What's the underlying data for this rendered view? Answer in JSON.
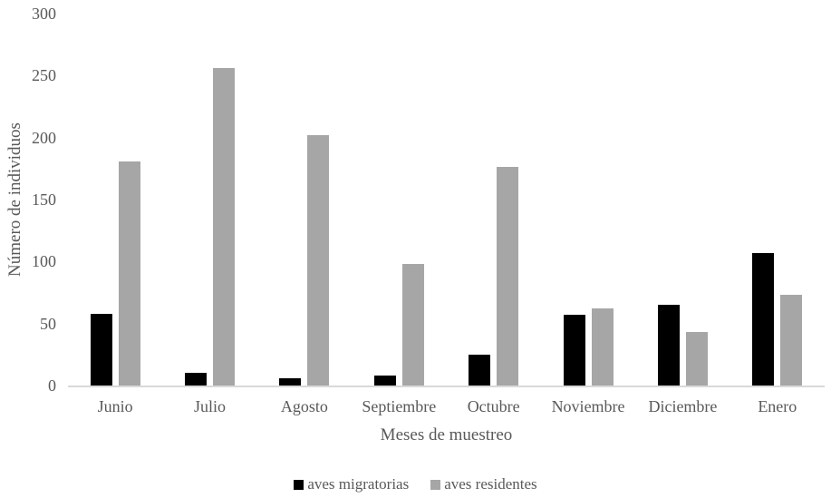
{
  "chart_data": {
    "type": "bar",
    "title": "",
    "categories": [
      "Junio",
      "Julio",
      "Agosto",
      "Septiembre",
      "Octubre",
      "Noviembre",
      "Diciembre",
      "Enero"
    ],
    "series": [
      {
        "name": "aves migratorias",
        "color": "#000000",
        "values": [
          58,
          10,
          6,
          8,
          25,
          57,
          65,
          107
        ]
      },
      {
        "name": "aves residentes",
        "color": "#A6A6A6",
        "values": [
          181,
          256,
          202,
          98,
          176,
          62,
          43,
          73
        ]
      }
    ],
    "xlabel": "Meses de muestreo",
    "ylabel": "Número de individuos",
    "ylim": [
      0,
      300
    ],
    "yticks": [
      0,
      50,
      100,
      150,
      200,
      250,
      300
    ],
    "grid": false,
    "legend_position": "bottom"
  },
  "colors": {
    "background": "#FFFFFF",
    "text": "#595959",
    "axis_line": "#D9D9D9",
    "bar_black": "#000000",
    "bar_gray": "#A6A6A6"
  }
}
